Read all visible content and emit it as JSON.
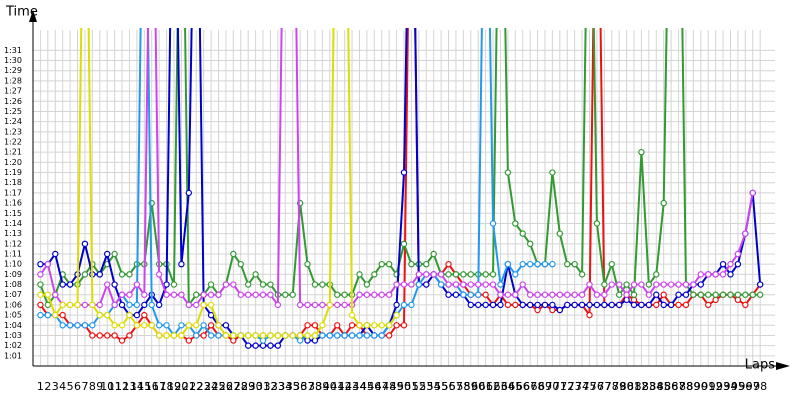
{
  "chart_data": {
    "type": "line",
    "y_label": "Time",
    "x_label": "Laps",
    "grid": true,
    "xlim": [
      0,
      100
    ],
    "ylim": [
      60,
      93
    ],
    "yticks": [
      {
        "value": 61,
        "label": "1:01"
      },
      {
        "value": 62,
        "label": "1:02"
      },
      {
        "value": 63,
        "label": "1:03"
      },
      {
        "value": 64,
        "label": "1:04"
      },
      {
        "value": 65,
        "label": "1:05"
      },
      {
        "value": 66,
        "label": "1:06"
      },
      {
        "value": 67,
        "label": "1:07"
      },
      {
        "value": 68,
        "label": "1:08"
      },
      {
        "value": 69,
        "label": "1:09"
      },
      {
        "value": 70,
        "label": "1:10"
      },
      {
        "value": 71,
        "label": "1:11"
      },
      {
        "value": 72,
        "label": "1:12"
      },
      {
        "value": 73,
        "label": "1:13"
      },
      {
        "value": 74,
        "label": "1:14"
      },
      {
        "value": 75,
        "label": "1:15"
      },
      {
        "value": 76,
        "label": "1:16"
      },
      {
        "value": 77,
        "label": "1:17"
      },
      {
        "value": 78,
        "label": "1:18"
      },
      {
        "value": 79,
        "label": "1:19"
      },
      {
        "value": 80,
        "label": "1:20"
      },
      {
        "value": 81,
        "label": "1:21"
      },
      {
        "value": 82,
        "label": "1:22"
      },
      {
        "value": 83,
        "label": "1:23"
      },
      {
        "value": 84,
        "label": "1:24"
      },
      {
        "value": 85,
        "label": "1:25"
      },
      {
        "value": 86,
        "label": "1:26"
      },
      {
        "value": 87,
        "label": "1:27"
      },
      {
        "value": 88,
        "label": "1:28"
      },
      {
        "value": 89,
        "label": "1:29"
      },
      {
        "value": 90,
        "label": "1:30"
      },
      {
        "value": 91,
        "label": "1:31"
      }
    ],
    "x": [
      1,
      2,
      3,
      4,
      5,
      6,
      7,
      8,
      9,
      10,
      11,
      12,
      13,
      14,
      15,
      16,
      17,
      18,
      19,
      20,
      21,
      22,
      23,
      24,
      25,
      26,
      27,
      28,
      29,
      30,
      31,
      32,
      33,
      34,
      35,
      36,
      37,
      38,
      39,
      40,
      41,
      42,
      43,
      44,
      45,
      46,
      47,
      48,
      49,
      50,
      51,
      52,
      53,
      54,
      55,
      56,
      57,
      58,
      59,
      60,
      61,
      62,
      63,
      64,
      65,
      66,
      67,
      68,
      69,
      70,
      71,
      72,
      73,
      74,
      75,
      76,
      77,
      78,
      79,
      80,
      81,
      82,
      83,
      84,
      85,
      86,
      87,
      88,
      89,
      90,
      91,
      92,
      93,
      94,
      95,
      96,
      97,
      98
    ],
    "series": [
      {
        "color": "#ee1111",
        "values": [
          66,
          65,
          65,
          65,
          64,
          64,
          64,
          63,
          63,
          63,
          63,
          62.5,
          63,
          64,
          65,
          64,
          63,
          63,
          63,
          63,
          62.5,
          63,
          63,
          64,
          63,
          63,
          62.5,
          63,
          63,
          63,
          63,
          63,
          63,
          63,
          63,
          63,
          64,
          64,
          63,
          63,
          64,
          63,
          64,
          64,
          63,
          63,
          63,
          63,
          64,
          64,
          120,
          68,
          68,
          69,
          69,
          70,
          69,
          68,
          67,
          67,
          67,
          66,
          67,
          66,
          66,
          66,
          66,
          65.5,
          66,
          65.5,
          65.5,
          66,
          66,
          66,
          65,
          120,
          66,
          66,
          66,
          67,
          66.5,
          66,
          66,
          66,
          67,
          66,
          66,
          66,
          67,
          67,
          66,
          66.5,
          67,
          67,
          66.5,
          66,
          67,
          68
        ]
      },
      {
        "color": "#339933",
        "values": [
          68,
          66,
          67,
          69,
          68,
          68,
          69,
          70,
          69,
          70,
          71,
          69,
          69,
          70,
          70,
          76,
          70,
          70,
          68,
          120,
          66,
          67,
          67,
          68,
          67,
          68,
          71,
          70,
          68,
          69,
          68,
          68,
          67,
          67,
          67,
          76,
          70,
          68,
          68,
          68,
          67,
          67,
          67,
          69,
          68,
          69,
          70,
          70,
          69,
          72,
          70,
          70,
          70,
          71,
          69,
          69,
          69,
          69,
          69,
          69,
          69,
          69,
          120,
          79,
          74,
          73,
          72,
          70,
          70,
          79,
          73,
          70,
          70,
          69,
          120,
          74,
          68,
          70,
          67,
          68,
          67,
          81,
          68,
          69,
          76,
          120,
          120,
          68,
          67,
          67,
          67,
          67,
          67,
          67,
          67,
          67,
          67,
          67
        ]
      },
      {
        "color": "#0000cc",
        "values": [
          70,
          70,
          71,
          68,
          68,
          69,
          72,
          69,
          69,
          71,
          68,
          66,
          65,
          65,
          66,
          67,
          66,
          68,
          120,
          70,
          77,
          120,
          66,
          65,
          64,
          64,
          63,
          63,
          62,
          62,
          62,
          62,
          62,
          63,
          63,
          63,
          62.5,
          62.5,
          63,
          63,
          63,
          63,
          63,
          63,
          64,
          63,
          63,
          64,
          66,
          79,
          120,
          68,
          68,
          69,
          68,
          67,
          67,
          67,
          66,
          66,
          66,
          66,
          66,
          70,
          67,
          66,
          66,
          66,
          66,
          66,
          65.5,
          66,
          66,
          66,
          66,
          66,
          66,
          66,
          66,
          66.5,
          66,
          66,
          66,
          67,
          66,
          66,
          67,
          67,
          68,
          68,
          69,
          69,
          70,
          69,
          70,
          73,
          77,
          68
        ]
      },
      {
        "color": "#2299ee",
        "values": [
          65,
          65,
          65,
          64,
          64,
          64,
          64,
          64,
          65,
          65,
          66,
          67,
          66,
          66,
          120,
          66,
          64,
          64,
          63,
          64,
          64,
          63,
          64,
          63,
          63,
          63,
          63,
          63,
          63,
          63,
          62.5,
          63,
          63,
          63,
          63,
          62.5,
          63,
          63,
          63,
          63,
          63,
          63,
          63,
          63,
          63,
          63,
          63,
          64,
          65,
          66,
          66,
          68,
          69,
          69,
          68,
          68,
          68,
          67,
          67,
          67,
          120,
          74,
          68,
          70,
          69,
          70,
          70,
          70,
          70,
          70,
          null,
          null,
          null,
          null,
          null,
          null,
          null,
          null,
          null,
          null,
          null,
          null,
          null,
          null,
          null,
          null,
          null,
          null,
          null,
          null,
          null,
          null,
          null,
          null,
          null,
          null,
          null,
          null
        ]
      },
      {
        "color": "#cc44ee",
        "values": [
          69,
          70,
          67,
          66,
          66,
          66,
          66,
          66,
          66,
          68,
          66,
          67,
          67,
          68,
          67,
          120,
          69,
          67,
          67,
          67,
          66,
          66,
          67,
          67,
          67,
          68,
          68,
          67,
          67,
          67,
          67,
          67,
          66,
          120,
          120,
          66,
          66,
          66,
          66,
          66,
          66,
          66,
          66,
          67,
          67,
          67,
          67,
          67,
          68,
          68,
          68,
          69,
          69,
          69,
          69,
          68,
          68,
          68,
          68,
          68,
          68,
          68,
          67,
          67,
          67,
          68,
          67,
          67,
          67,
          67,
          67,
          67,
          67,
          67,
          68,
          67,
          67,
          68,
          68,
          67,
          68,
          68,
          67,
          68,
          68,
          68,
          68,
          68,
          68,
          69,
          69,
          69,
          69,
          70,
          71,
          73,
          77,
          null
        ]
      },
      {
        "color": "#dddd00",
        "values": [
          67,
          67,
          65,
          66,
          66,
          66,
          120,
          66,
          65,
          65,
          64,
          64,
          65,
          64,
          64,
          64,
          63,
          63,
          63,
          63,
          64,
          64,
          66,
          66,
          64,
          63,
          63,
          63,
          63,
          63,
          63,
          63,
          63,
          63,
          63,
          63,
          63,
          63,
          64,
          66,
          120,
          120,
          65,
          64,
          64,
          64,
          64,
          64,
          65,
          null,
          null,
          null,
          null,
          null,
          null,
          null,
          null,
          null,
          null,
          null,
          null,
          null,
          null,
          null,
          null,
          null,
          null,
          null,
          null,
          null,
          null,
          null,
          null,
          null,
          null,
          null,
          null,
          null,
          null,
          null,
          null,
          null,
          null,
          null,
          null,
          null,
          null,
          null,
          null,
          null,
          null,
          null,
          null,
          null,
          null,
          null,
          null,
          null
        ]
      }
    ]
  }
}
